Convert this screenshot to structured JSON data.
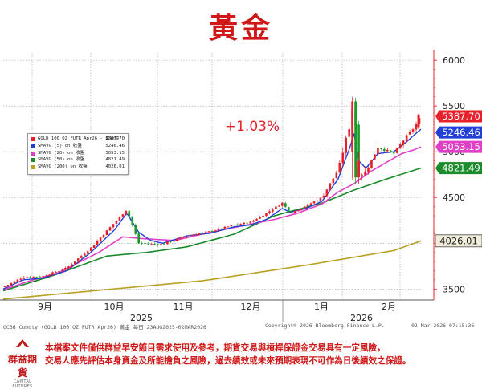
{
  "title": "黃金",
  "chart_data": {
    "type": "candlestick",
    "x_ticks": [
      "9月",
      "10月",
      "11月",
      "12月",
      "1月",
      "2月"
    ],
    "year_labels": [
      "2025",
      "2026"
    ],
    "y_ticks": [
      "3500",
      "4000",
      "4500",
      "5000",
      "5500",
      "6000"
    ],
    "ylim": [
      3380,
      6080
    ],
    "annotation": "+1.03%",
    "price_tags": [
      {
        "value": 5387.7,
        "label": "5387.70",
        "color": "#e8202a"
      },
      {
        "value": 5246.46,
        "label": "5246.46",
        "color": "#2040d8"
      },
      {
        "value": 5053.15,
        "label": "5053.15",
        "color": "#e040c8"
      },
      {
        "value": 4821.49,
        "label": "4821.49",
        "color": "#1a8a2a"
      },
      {
        "value": 4026.01,
        "label": "4026.01",
        "color": "#b8a020"
      }
    ],
    "legend": [
      {
        "label": "GOLD 100 OZ FUTR Apr26 - 最新價",
        "value": "5387.70",
        "color": "#e8202a"
      },
      {
        "label": "SMAVG (5)  on 收盤",
        "value": "5246.46",
        "color": "#2040d8"
      },
      {
        "label": "SMAVG (20)  on 收盤",
        "value": "5053.15",
        "color": "#e040c8"
      },
      {
        "label": "SMAVG (50)  on 收盤",
        "value": "4821.49",
        "color": "#1a8a2a"
      },
      {
        "label": "SMAVG (200)  on 收盤",
        "value": "4026.01",
        "color": "#b8a020"
      }
    ],
    "series": [
      {
        "name": "SMAVG (200)",
        "color": "#b8a020",
        "x": [
          0,
          250,
          380,
          490,
          524
        ],
        "values": [
          3390,
          3590,
          3760,
          3920,
          4026
        ]
      },
      {
        "name": "SMAVG (50)",
        "color": "#1a8a2a",
        "x": [
          0,
          60,
          130,
          180,
          230,
          290,
          340,
          400,
          440,
          480,
          524
        ],
        "values": [
          3480,
          3640,
          3860,
          3900,
          3960,
          4100,
          4300,
          4440,
          4580,
          4700,
          4821
        ]
      },
      {
        "name": "SMAVG (20)",
        "color": "#e040c8",
        "x": [
          0,
          30,
          70,
          120,
          150,
          175,
          215,
          260,
          300,
          340,
          370,
          400,
          420,
          440,
          460,
          480,
          500,
          515,
          524
        ],
        "values": [
          3490,
          3580,
          3680,
          3900,
          4070,
          4050,
          4030,
          4120,
          4190,
          4260,
          4330,
          4430,
          4560,
          4650,
          4780,
          4880,
          4980,
          5020,
          5053
        ]
      },
      {
        "name": "SMAVG (5)",
        "color": "#2040d8",
        "x": [
          0,
          25,
          50,
          80,
          110,
          140,
          155,
          170,
          185,
          200,
          230,
          260,
          290,
          310,
          330,
          350,
          360,
          380,
          400,
          420,
          435,
          440,
          446,
          455,
          470,
          490,
          505,
          515,
          524
        ],
        "values": [
          3500,
          3600,
          3620,
          3700,
          3900,
          4150,
          4330,
          4120,
          4030,
          4000,
          4080,
          4110,
          4180,
          4200,
          4260,
          4380,
          4340,
          4380,
          4460,
          4700,
          5050,
          5200,
          4900,
          4820,
          4980,
          5000,
          5100,
          5180,
          5246
        ]
      },
      {
        "name": "GOLD 100 OZ FUTR Apr26",
        "color": "#e8202a",
        "x": [
          0,
          25,
          50,
          80,
          110,
          140,
          155,
          170,
          185,
          200,
          230,
          260,
          290,
          310,
          330,
          350,
          360,
          380,
          400,
          420,
          435,
          440,
          446,
          455,
          470,
          490,
          505,
          515,
          524
        ],
        "values": [
          3520,
          3630,
          3640,
          3730,
          3950,
          4230,
          4370,
          4000,
          3990,
          3990,
          4080,
          4130,
          4200,
          4230,
          4330,
          4440,
          4330,
          4410,
          4500,
          4800,
          5300,
          5560,
          4750,
          4780,
          5050,
          4980,
          5160,
          5260,
          5388
        ]
      }
    ]
  },
  "footer": {
    "source": "GC36 Comdty (GOLD 100 OZ FUTR  Apr26) 黃金 每日 23AUG2025-02MAR2026",
    "copyright": "Copyright® 2026 Bloomberg Finance L.P.",
    "timestamp": "02-Mar-2026 07:15:36"
  },
  "logo": {
    "name": "群益期貨",
    "sub": "CAPITAL FUTURES"
  },
  "disclaimer": [
    "本檔案文件僅供群益早安節目需求使用及參考，期貨交易與槓桿保證金交易具有一定風險，",
    "交易人應先評估本身資金及所能擔負之風險，過去績效或未來預期表現不可作為日後績效之保證。"
  ]
}
